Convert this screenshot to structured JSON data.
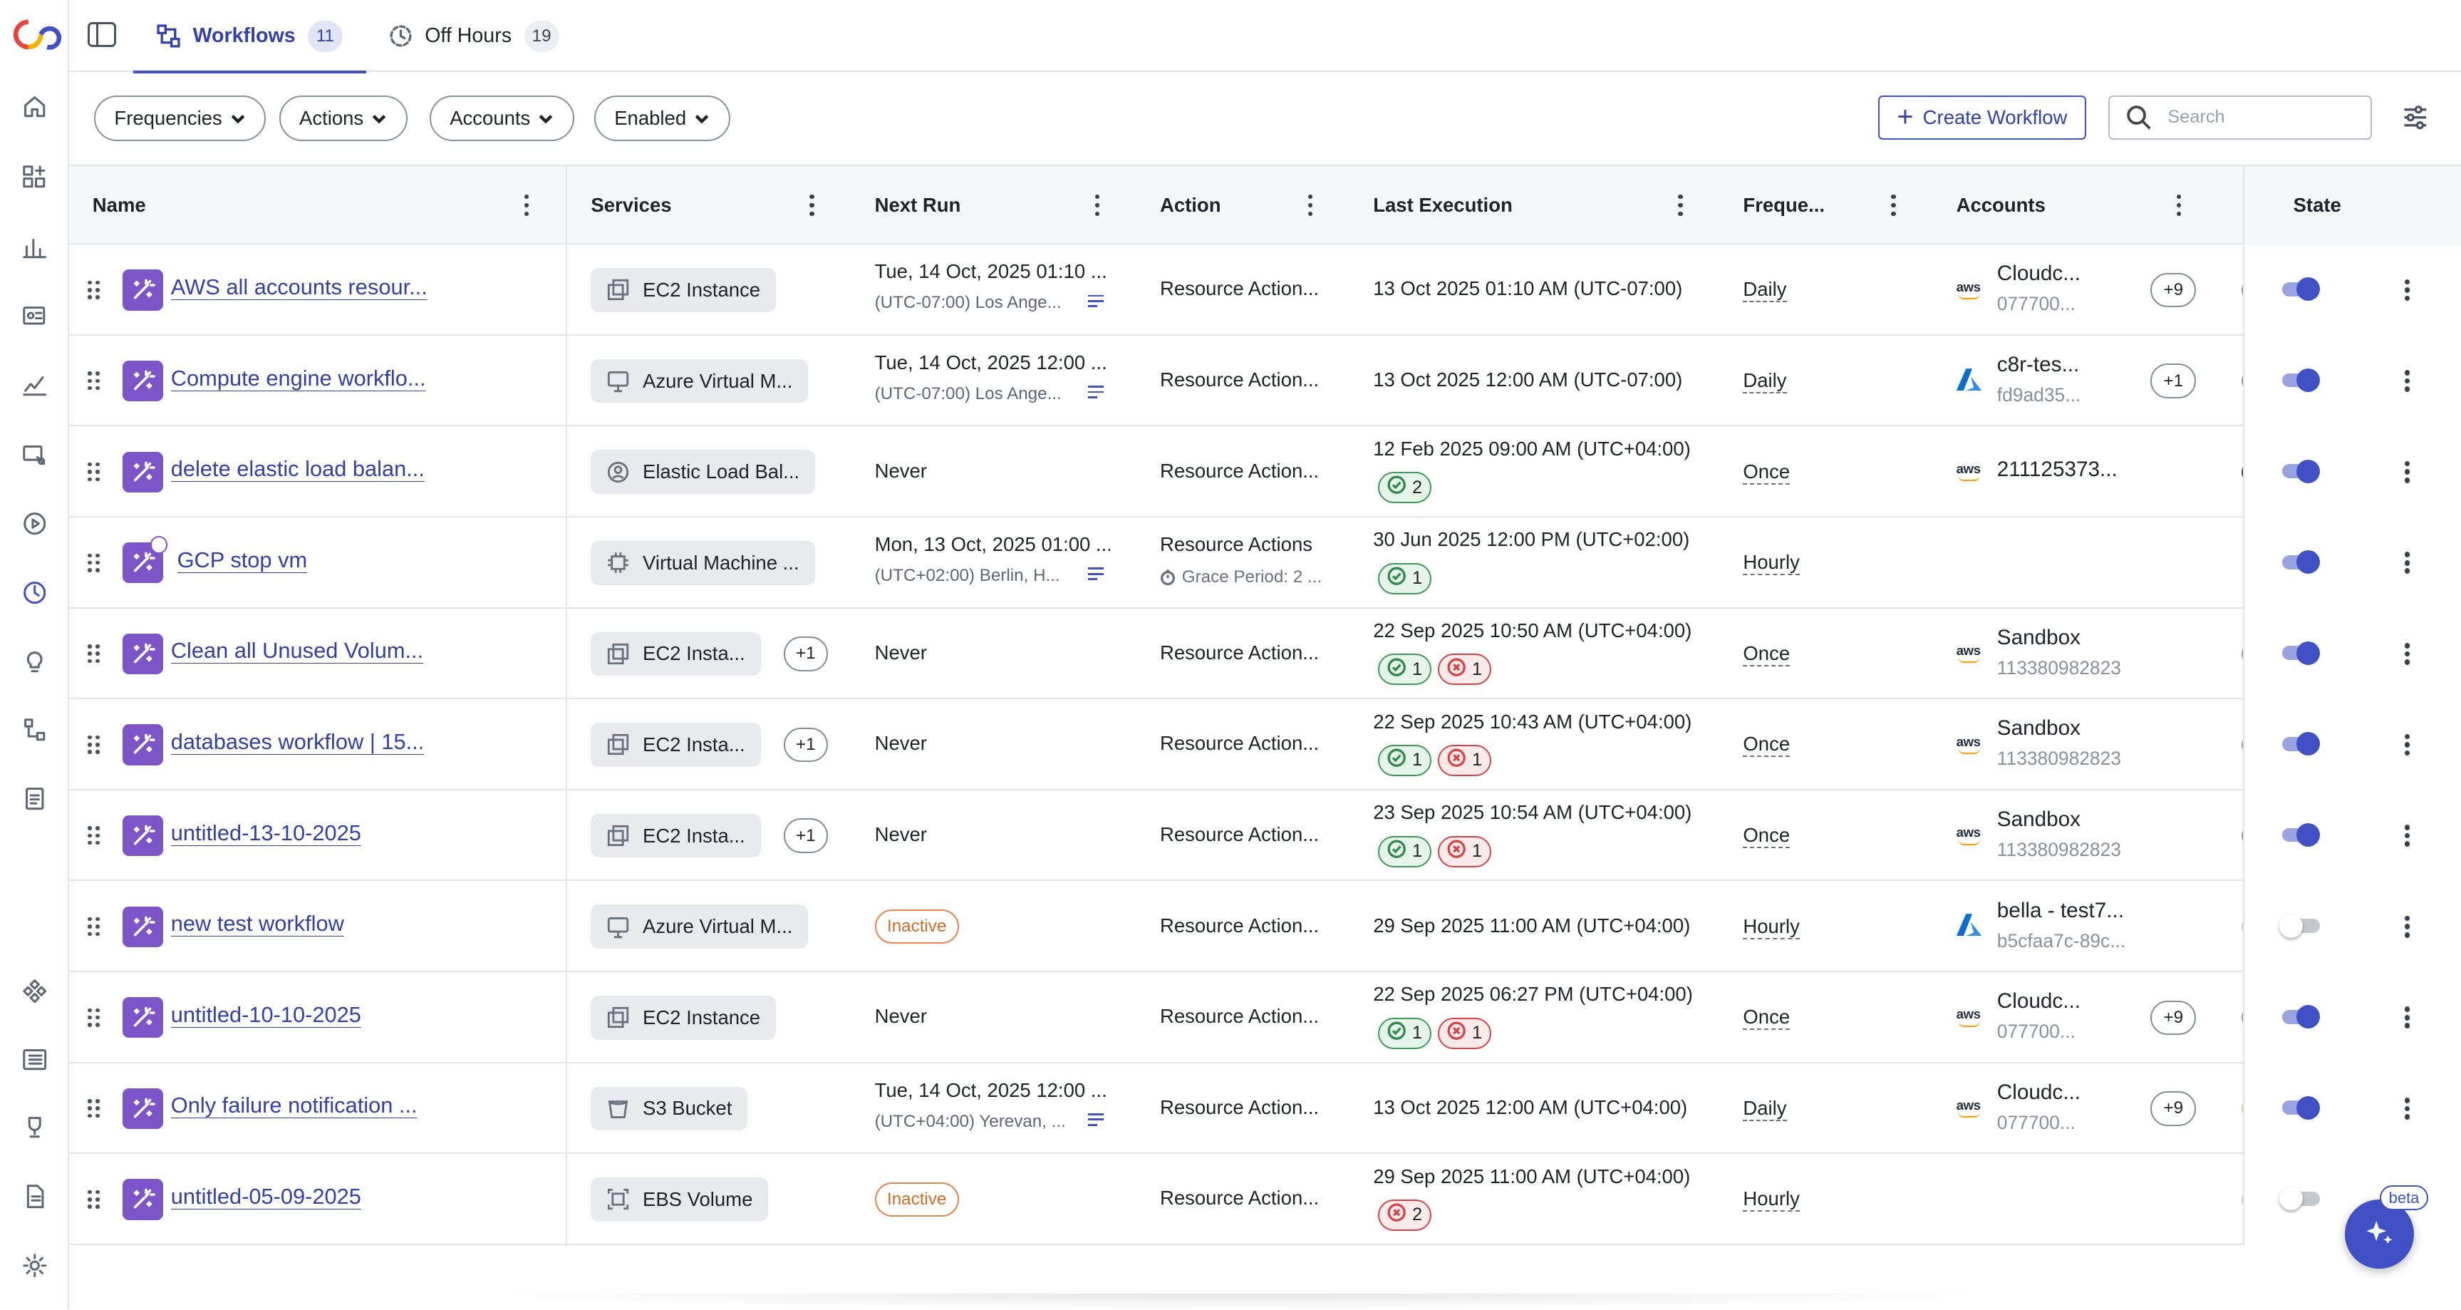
{
  "tabs": [
    {
      "label": "Workflows",
      "count": "11"
    },
    {
      "label": "Off Hours",
      "count": "19"
    }
  ],
  "filters": [
    "Frequencies",
    "Actions",
    "Accounts",
    "Enabled"
  ],
  "toolbar": {
    "create_label": "Create Workflow",
    "search_placeholder": "Search"
  },
  "columns": {
    "name": "Name",
    "services": "Services",
    "next_run": "Next Run",
    "action": "Action",
    "last_execution": "Last Execution",
    "frequency": "Freque...",
    "accounts": "Accounts",
    "state": "State"
  },
  "rows": [
    {
      "name": "AWS all accounts resour...",
      "service": "EC2 Instance",
      "next_run_1": "Tue, 14 Oct, 2025 01:10 ...",
      "next_run_2": "(UTC-07:00) Los Ange...",
      "action": "Resource Action...",
      "last_exec": "13 Oct 2025 01:10 AM (UTC-07:00)",
      "frequency": "Daily",
      "account_1": "Cloudc...",
      "account_2": "077700...",
      "account_plus": "+9",
      "enabled": true
    },
    {
      "name": "Compute engine workflo...",
      "service": "Azure Virtual M...",
      "next_run_1": "Tue, 14 Oct, 2025 12:00 ...",
      "next_run_2": "(UTC-07:00) Los Ange...",
      "action": "Resource Action...",
      "last_exec": "13 Oct 2025 12:00 AM (UTC-07:00)",
      "frequency": "Daily",
      "account_1": "c8r-tes...",
      "account_2": "fd9ad35...",
      "account_plus": "+1",
      "enabled": true
    },
    {
      "name": "delete elastic load balan...",
      "service": "Elastic Load Bal...",
      "next_run": "Never",
      "action": "Resource Action...",
      "last_exec": "12 Feb 2025 09:00 AM (UTC+04:00)",
      "success": "2",
      "frequency": "Once",
      "account_1": "211125373...",
      "enabled": true
    },
    {
      "name": "GCP stop vm",
      "service": "Virtual Machine ...",
      "next_run_1": "Mon, 13 Oct, 2025 01:00 ...",
      "next_run_2": "(UTC+02:00) Berlin, H...",
      "action": "Resource Actions",
      "grace": "Grace Period: 2 ...",
      "last_exec": "30 Jun 2025 12:00 PM (UTC+02:00)",
      "success": "1",
      "frequency": "Hourly",
      "enabled": true
    },
    {
      "name": "Clean all Unused Volum...",
      "service": "EC2 Insta...",
      "service_plus": "+1",
      "next_run": "Never",
      "action": "Resource Action...",
      "last_exec": "22 Sep 2025 10:50 AM (UTC+04:00)",
      "success": "1",
      "failed": "1",
      "frequency": "Once",
      "account_1": "Sandbox",
      "account_2": "113380982823",
      "enabled": true
    },
    {
      "name": "databases workflow | 15...",
      "service": "EC2 Insta...",
      "service_plus": "+1",
      "next_run": "Never",
      "action": "Resource Action...",
      "last_exec": "22 Sep 2025 10:43 AM (UTC+04:00)",
      "success": "1",
      "failed": "1",
      "frequency": "Once",
      "account_1": "Sandbox",
      "account_2": "113380982823",
      "enabled": true
    },
    {
      "name": "untitled-13-10-2025",
      "service": "EC2 Insta...",
      "service_plus": "+1",
      "next_run": "Never",
      "action": "Resource Action...",
      "last_exec": "23 Sep 2025 10:54 AM (UTC+04:00)",
      "success": "1",
      "failed": "1",
      "frequency": "Once",
      "account_1": "Sandbox",
      "account_2": "113380982823",
      "enabled": true
    },
    {
      "name": "new test workflow",
      "service": "Azure Virtual M...",
      "status": "Inactive",
      "action": "Resource Action...",
      "last_exec": "29 Sep 2025 11:00 AM (UTC+04:00)",
      "frequency": "Hourly",
      "account_1": "bella - test7...",
      "account_2": "b5cfaa7c-89c...",
      "enabled": false
    },
    {
      "name": "untitled-10-10-2025",
      "service": "EC2 Instance",
      "next_run": "Never",
      "action": "Resource Action...",
      "last_exec": "22 Sep 2025 06:27 PM (UTC+04:00)",
      "success": "1",
      "failed": "1",
      "frequency": "Once",
      "account_1": "Cloudc...",
      "account_2": "077700...",
      "account_plus": "+9",
      "enabled": true
    },
    {
      "name": "Only failure notification ...",
      "service": "S3 Bucket",
      "next_run_1": "Tue, 14 Oct, 2025 12:00 ...",
      "next_run_2": "(UTC+04:00) Yerevan, ...",
      "action": "Resource Action...",
      "last_exec": "13 Oct 2025 12:00 AM (UTC+04:00)",
      "frequency": "Daily",
      "account_1": "Cloudc...",
      "account_2": "077700...",
      "account_plus": "+9",
      "enabled": true
    },
    {
      "name": "untitled-05-09-2025",
      "service": "EBS Volume",
      "status": "Inactive",
      "action": "Resource Action...",
      "last_exec": "29 Sep 2025 11:00 AM (UTC+04:00)",
      "failed": "2",
      "frequency": "Hourly",
      "enabled": false
    }
  ],
  "assistant": {
    "badge": "beta"
  },
  "colors": {
    "accent": "#3f51c5",
    "workflow_icon": "#7c55c9",
    "inactive": "#d36a25",
    "success": "#2f8b4a",
    "error": "#d64545"
  }
}
